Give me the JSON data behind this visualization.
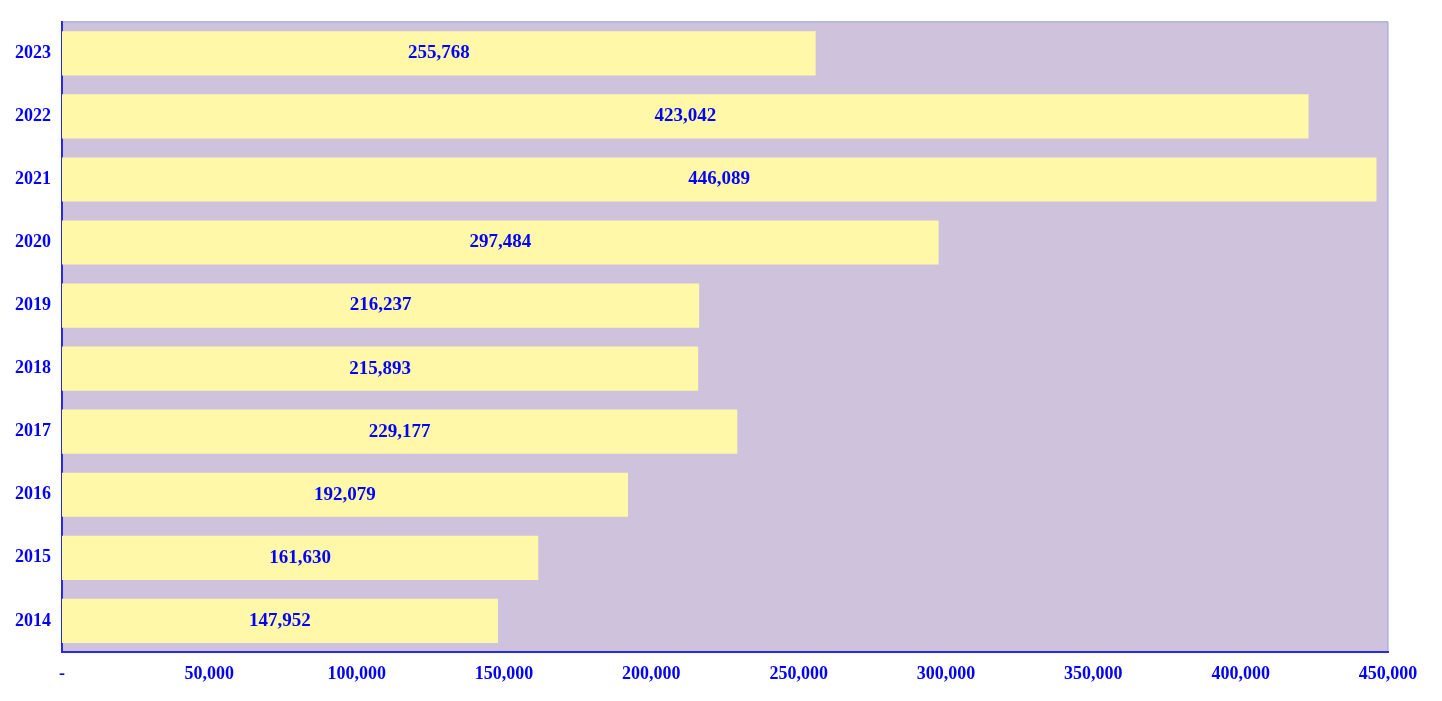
{
  "chart_data": {
    "type": "bar",
    "orientation": "horizontal",
    "categories": [
      "2023",
      "2022",
      "2021",
      "2020",
      "2019",
      "2018",
      "2017",
      "2016",
      "2015",
      "2014"
    ],
    "series": [
      {
        "color": "#fff8a8",
        "values": [
          255768,
          423042,
          446089,
          297484,
          216237,
          215893,
          229177,
          192079,
          161630,
          147952
        ],
        "value_labels": [
          "255,768",
          "423,042",
          "446,089",
          "297,484",
          "216,237",
          "215,893",
          "229,177",
          "192,079",
          "161,630",
          "147,952"
        ]
      }
    ],
    "xlim": [
      0,
      450000
    ],
    "xticks": [
      {
        "value": 0,
        "label": "-"
      },
      {
        "value": 50000,
        "label": "50,000"
      },
      {
        "value": 100000,
        "label": "100,000"
      },
      {
        "value": 150000,
        "label": "150,000"
      },
      {
        "value": 200000,
        "label": "200,000"
      },
      {
        "value": 250000,
        "label": "250,000"
      },
      {
        "value": 300000,
        "label": "300,000"
      },
      {
        "value": 350000,
        "label": "350,000"
      },
      {
        "value": 400000,
        "label": "400,000"
      },
      {
        "value": 450000,
        "label": "450,000"
      }
    ],
    "grid": false,
    "legend": false
  }
}
